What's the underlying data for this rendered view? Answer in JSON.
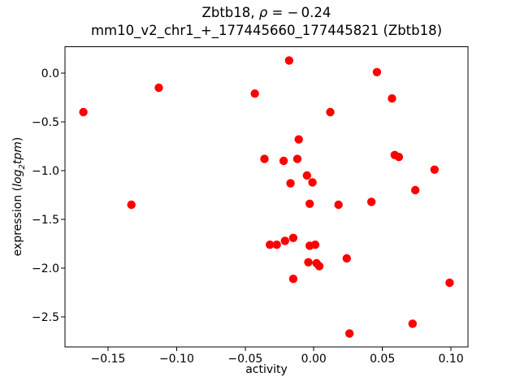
{
  "chart_data": {
    "type": "scatter",
    "title": {
      "line1_prefix": "Zbtb18, ",
      "line1_rho": "ρ",
      "line1_suffix": " = − 0.24",
      "line2": "mm10_v2_chr1_+_177445660_177445821 (Zbtb18)"
    },
    "xlabel": "activity",
    "ylabel": {
      "prefix": "expression (",
      "italic_log": "log",
      "subscript": "2",
      "italic_tpm": "tpm",
      "suffix": ")"
    },
    "marker_color": "#ff0000",
    "axis_color": "#000000",
    "background_color": "#ffffff",
    "legend": "none",
    "grid": false,
    "xlim": [
      -0.1814,
      0.1124
    ],
    "ylim": [
      -2.81,
      0.27
    ],
    "x_ticks": [
      {
        "v": -0.15,
        "label": "−0.15"
      },
      {
        "v": -0.1,
        "label": "−0.10"
      },
      {
        "v": -0.05,
        "label": "−0.05"
      },
      {
        "v": 0.0,
        "label": "0.00"
      },
      {
        "v": 0.05,
        "label": "0.05"
      },
      {
        "v": 0.1,
        "label": "0.10"
      }
    ],
    "y_ticks": [
      {
        "v": 0.0,
        "label": "0.0"
      },
      {
        "v": -0.5,
        "label": "−0.5"
      },
      {
        "v": -1.0,
        "label": "−1.0"
      },
      {
        "v": -1.5,
        "label": "−1.5"
      },
      {
        "v": -2.0,
        "label": "−2.0"
      },
      {
        "v": -2.5,
        "label": "−2.5"
      }
    ],
    "points": [
      {
        "x": -0.168,
        "y": -0.4
      },
      {
        "x": -0.133,
        "y": -1.35
      },
      {
        "x": -0.113,
        "y": -0.15
      },
      {
        "x": -0.043,
        "y": -0.21
      },
      {
        "x": -0.018,
        "y": 0.13
      },
      {
        "x": -0.036,
        "y": -0.88
      },
      {
        "x": -0.022,
        "y": -0.9
      },
      {
        "x": -0.012,
        "y": -0.88
      },
      {
        "x": -0.011,
        "y": -0.68
      },
      {
        "x": -0.017,
        "y": -1.13
      },
      {
        "x": -0.005,
        "y": -1.05
      },
      {
        "x": -0.001,
        "y": -1.12
      },
      {
        "x": -0.003,
        "y": -1.34
      },
      {
        "x": 0.018,
        "y": -1.35
      },
      {
        "x": 0.042,
        "y": -1.32
      },
      {
        "x": 0.012,
        "y": -0.4
      },
      {
        "x": 0.046,
        "y": 0.01
      },
      {
        "x": 0.057,
        "y": -0.26
      },
      {
        "x": 0.059,
        "y": -0.84
      },
      {
        "x": 0.062,
        "y": -0.86
      },
      {
        "x": 0.088,
        "y": -0.99
      },
      {
        "x": 0.074,
        "y": -1.2
      },
      {
        "x": -0.032,
        "y": -1.76
      },
      {
        "x": -0.027,
        "y": -1.76
      },
      {
        "x": -0.021,
        "y": -1.72
      },
      {
        "x": -0.015,
        "y": -1.69
      },
      {
        "x": -0.003,
        "y": -1.77
      },
      {
        "x": 0.001,
        "y": -1.76
      },
      {
        "x": -0.004,
        "y": -1.94
      },
      {
        "x": 0.002,
        "y": -1.95
      },
      {
        "x": 0.004,
        "y": -1.98
      },
      {
        "x": 0.024,
        "y": -1.9
      },
      {
        "x": -0.015,
        "y": -2.11
      },
      {
        "x": 0.099,
        "y": -2.15
      },
      {
        "x": 0.072,
        "y": -2.57
      },
      {
        "x": 0.026,
        "y": -2.67
      }
    ]
  }
}
